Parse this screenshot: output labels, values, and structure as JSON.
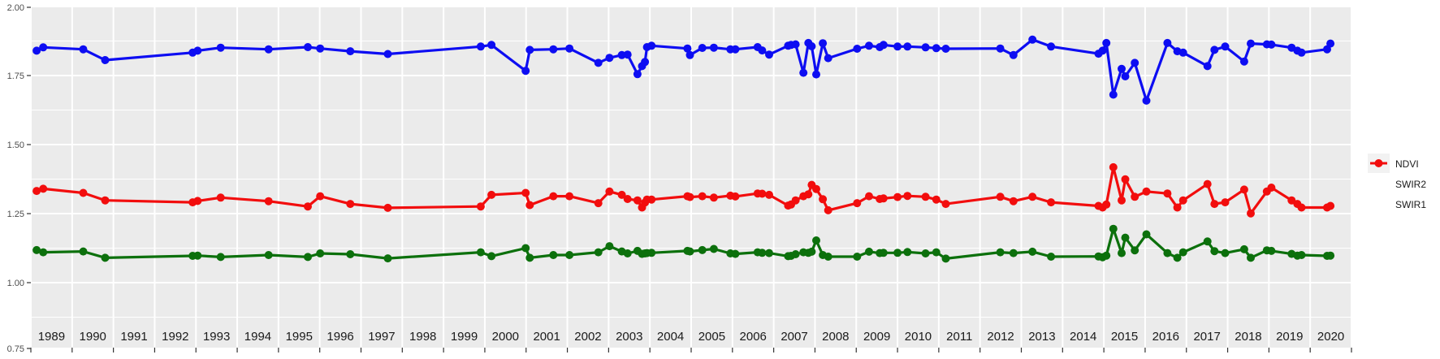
{
  "figure": {
    "background": "#ffffff",
    "panel_bg": "#ebebeb",
    "grid_color": "#ffffff",
    "axis_text_color": "#4d4d4d",
    "year_label_color": "#1a1a1a",
    "tick_color": "#333333",
    "legend_key_bg": "#f2f2f2"
  },
  "chart_data": {
    "type": "line",
    "title": "",
    "xlabel": "",
    "ylabel": "",
    "xlim": [
      1989,
      2021
    ],
    "ylim": [
      0.75,
      2.0
    ],
    "grid": "on",
    "y_axis": {
      "major_ticks": [
        2.0,
        1.75,
        1.5,
        1.25,
        1.0,
        0.75
      ],
      "major_tick_labels": [
        "2.00",
        "1.75",
        "1.50",
        "1.25",
        "1.00",
        "0.75"
      ],
      "minor_gridlines": [
        1.875,
        1.625,
        1.375,
        1.125,
        0.875
      ]
    },
    "x_axis": {
      "tick_years": [
        1989,
        1990,
        1991,
        1992,
        1993,
        1994,
        1995,
        1996,
        1997,
        1998,
        1999,
        2000,
        2001,
        2002,
        2003,
        2004,
        2005,
        2006,
        2007,
        2008,
        2009,
        2010,
        2011,
        2012,
        2013,
        2014,
        2015,
        2016,
        2017,
        2018,
        2019,
        2020,
        2021
      ],
      "year_labels": [
        "1989",
        "1990",
        "1991",
        "1992",
        "1993",
        "1994",
        "1995",
        "1996",
        "1997",
        "1998",
        "1999",
        "2000",
        "2001",
        "2002",
        "2003",
        "2004",
        "2005",
        "2006",
        "2007",
        "2008",
        "2009",
        "2010",
        "2011",
        "2012",
        "2013",
        "2014",
        "2015",
        "2016",
        "2017",
        "2018",
        "2019",
        "2020"
      ]
    },
    "legend": {
      "position": "right",
      "entries": [
        {
          "label": "NDVI",
          "color": "#0d0df2"
        },
        {
          "label": "SWIR2",
          "color": "#0c700c"
        },
        {
          "label": "SWIR1",
          "color": "#f20d0d"
        }
      ]
    },
    "x": [
      1989.14,
      1989.3,
      1990.27,
      1990.8,
      1992.92,
      1993.04,
      1993.6,
      1994.76,
      1995.71,
      1996.01,
      1996.74,
      1997.65,
      1999.9,
      2000.16,
      2000.99,
      2001.09,
      2001.66,
      2002.05,
      2002.75,
      2003.02,
      2003.32,
      2003.46,
      2003.7,
      2003.81,
      2003.88,
      2003.93,
      2004.04,
      2004.91,
      2004.97,
      2005.27,
      2005.55,
      2005.95,
      2006.07,
      2006.61,
      2006.72,
      2006.89,
      2007.35,
      2007.42,
      2007.53,
      2007.72,
      2007.84,
      2007.92,
      2008.03,
      2008.19,
      2008.32,
      2009.02,
      2009.31,
      2009.57,
      2009.66,
      2010.0,
      2010.24,
      2010.68,
      2010.94,
      2011.17,
      2012.49,
      2012.81,
      2013.27,
      2013.72,
      2014.87,
      2014.97,
      2015.06,
      2015.23,
      2015.43,
      2015.52,
      2015.75,
      2016.03,
      2016.54,
      2016.78,
      2016.92,
      2017.51,
      2017.68,
      2017.94,
      2018.4,
      2018.56,
      2018.95,
      2019.06,
      2019.55,
      2019.69,
      2019.79,
      2020.41,
      2020.49
    ],
    "series": [
      {
        "name": "NDVI",
        "color": "#0d0df2",
        "values": [
          1.84,
          1.852,
          1.845,
          1.806,
          1.833,
          1.84,
          1.851,
          1.845,
          1.853,
          1.848,
          1.838,
          1.828,
          1.855,
          1.861,
          1.767,
          1.843,
          1.845,
          1.848,
          1.796,
          1.814,
          1.824,
          1.826,
          1.755,
          1.784,
          1.799,
          1.853,
          1.858,
          1.848,
          1.824,
          1.85,
          1.851,
          1.845,
          1.845,
          1.853,
          1.841,
          1.826,
          1.858,
          1.861,
          1.863,
          1.76,
          1.868,
          1.856,
          1.754,
          1.867,
          1.813,
          1.847,
          1.858,
          1.853,
          1.861,
          1.855,
          1.855,
          1.852,
          1.849,
          1.847,
          1.848,
          1.824,
          1.88,
          1.855,
          1.829,
          1.84,
          1.868,
          1.681,
          1.774,
          1.747,
          1.796,
          1.659,
          1.868,
          1.838,
          1.833,
          1.784,
          1.843,
          1.855,
          1.801,
          1.866,
          1.863,
          1.862,
          1.851,
          1.84,
          1.833,
          1.845,
          1.866
        ]
      },
      {
        "name": "SWIR2",
        "color": "#0c700c",
        "values": [
          1.118,
          1.11,
          1.113,
          1.09,
          1.097,
          1.098,
          1.093,
          1.1,
          1.093,
          1.106,
          1.103,
          1.088,
          1.11,
          1.096,
          1.125,
          1.09,
          1.1,
          1.1,
          1.11,
          1.132,
          1.113,
          1.106,
          1.115,
          1.104,
          1.106,
          1.107,
          1.108,
          1.115,
          1.113,
          1.118,
          1.122,
          1.106,
          1.104,
          1.11,
          1.108,
          1.107,
          1.096,
          1.097,
          1.103,
          1.11,
          1.108,
          1.112,
          1.153,
          1.1,
          1.094,
          1.094,
          1.112,
          1.107,
          1.108,
          1.108,
          1.111,
          1.106,
          1.11,
          1.087,
          1.11,
          1.107,
          1.112,
          1.094,
          1.095,
          1.092,
          1.098,
          1.195,
          1.107,
          1.163,
          1.117,
          1.175,
          1.107,
          1.09,
          1.11,
          1.149,
          1.114,
          1.107,
          1.121,
          1.09,
          1.117,
          1.115,
          1.104,
          1.098,
          1.1,
          1.097,
          1.098
        ]
      },
      {
        "name": "SWIR1",
        "color": "#f20d0d",
        "values": [
          1.332,
          1.34,
          1.325,
          1.298,
          1.291,
          1.296,
          1.308,
          1.295,
          1.276,
          1.313,
          1.285,
          1.271,
          1.276,
          1.318,
          1.325,
          1.281,
          1.313,
          1.313,
          1.288,
          1.33,
          1.318,
          1.303,
          1.298,
          1.272,
          1.29,
          1.301,
          1.301,
          1.313,
          1.31,
          1.313,
          1.308,
          1.315,
          1.312,
          1.323,
          1.322,
          1.318,
          1.279,
          1.283,
          1.298,
          1.313,
          1.32,
          1.354,
          1.339,
          1.302,
          1.262,
          1.288,
          1.313,
          1.303,
          1.305,
          1.31,
          1.314,
          1.311,
          1.301,
          1.285,
          1.311,
          1.295,
          1.311,
          1.291,
          1.278,
          1.272,
          1.283,
          1.418,
          1.298,
          1.374,
          1.311,
          1.33,
          1.323,
          1.272,
          1.298,
          1.357,
          1.285,
          1.291,
          1.337,
          1.251,
          1.33,
          1.344,
          1.298,
          1.285,
          1.272,
          1.272,
          1.278
        ]
      }
    ]
  }
}
